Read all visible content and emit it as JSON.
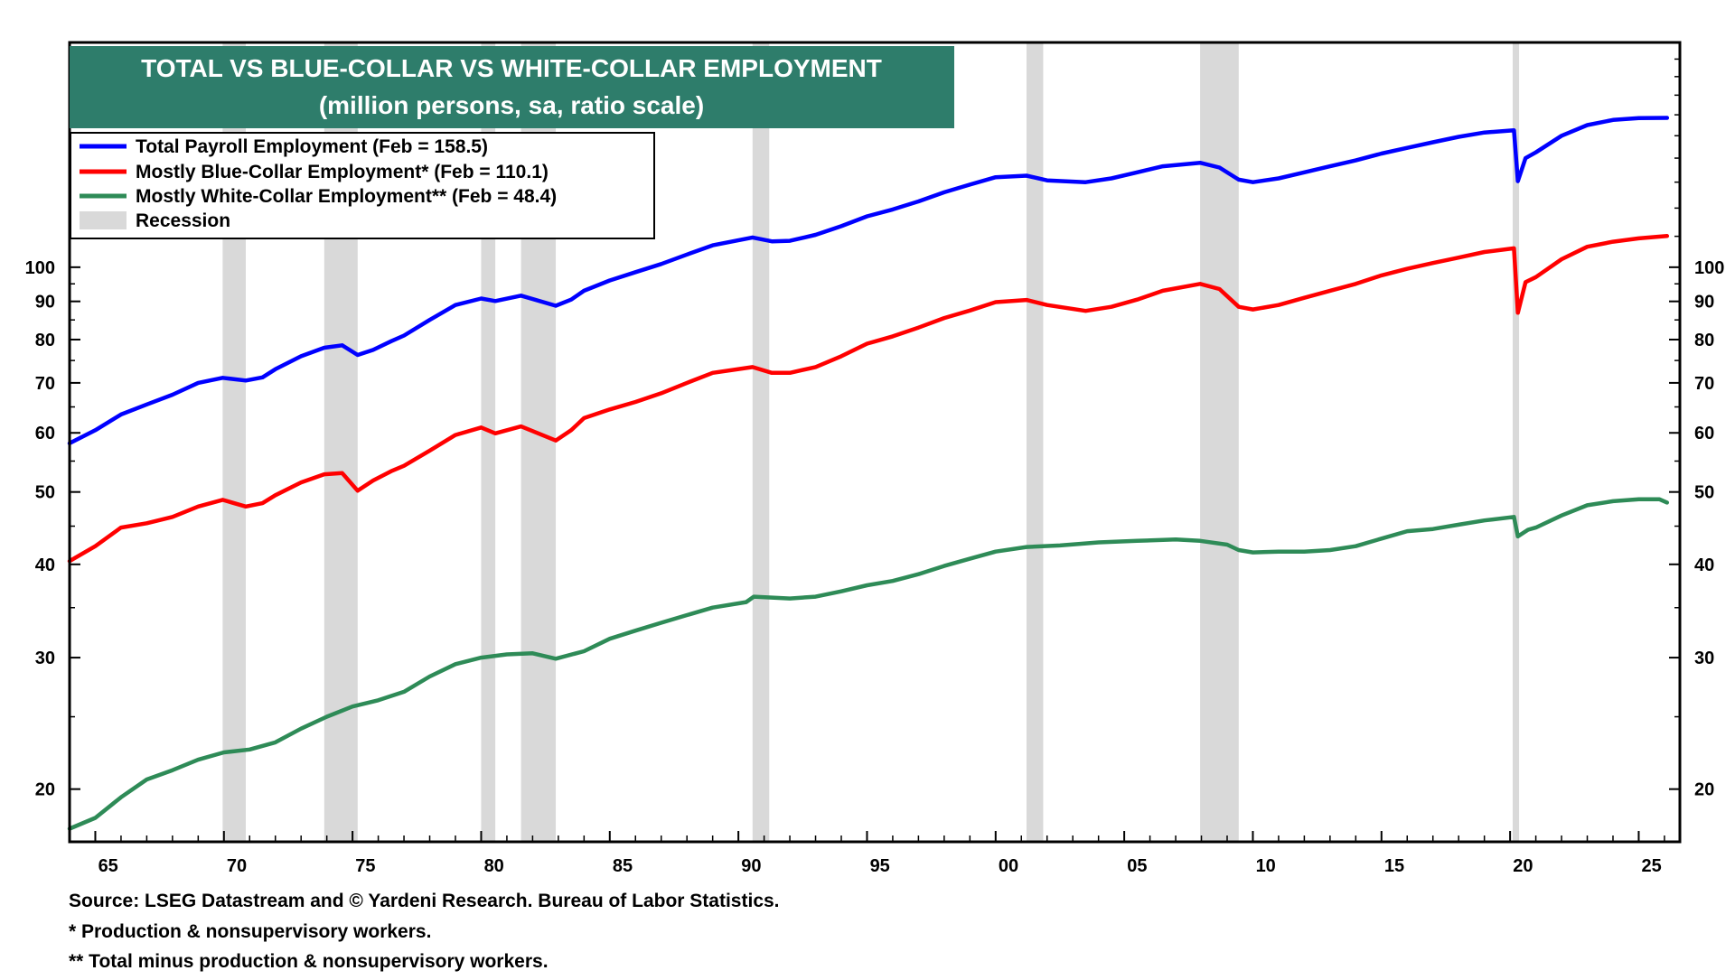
{
  "chart_data": {
    "type": "line",
    "title": "TOTAL VS BLUE-COLLAR VS WHITE-COLLAR EMPLOYMENT",
    "subtitle": "(million persons, sa, ratio scale)",
    "scale": "log",
    "ylim": [
      17,
      200
    ],
    "xlim": [
      1964.0,
      2026.6
    ],
    "y_ticks": [
      20,
      30,
      40,
      50,
      60,
      70,
      80,
      90,
      100
    ],
    "x_ticks": [
      {
        "value": 1965,
        "label": "65"
      },
      {
        "value": 1970,
        "label": "70"
      },
      {
        "value": 1975,
        "label": "75"
      },
      {
        "value": 1980,
        "label": "80"
      },
      {
        "value": 1985,
        "label": "85"
      },
      {
        "value": 1990,
        "label": "90"
      },
      {
        "value": 1995,
        "label": "95"
      },
      {
        "value": 2000,
        "label": "00"
      },
      {
        "value": 2005,
        "label": "05"
      },
      {
        "value": 2010,
        "label": "10"
      },
      {
        "value": 2015,
        "label": "15"
      },
      {
        "value": 2020,
        "label": "20"
      },
      {
        "value": 2025,
        "label": "25"
      }
    ],
    "legend": {
      "position": "top-left"
    },
    "recessions": [
      [
        1969.95,
        1970.85
      ],
      [
        1973.9,
        1975.2
      ],
      [
        1980.0,
        1980.55
      ],
      [
        1981.55,
        1982.9
      ],
      [
        1990.55,
        1991.2
      ],
      [
        2001.2,
        2001.85
      ],
      [
        2007.95,
        2009.45
      ],
      [
        2020.1,
        2020.35
      ]
    ],
    "recession_label": "Recession",
    "recession_color": "#d9d9d9",
    "series": [
      {
        "name": "Total Payroll Employment (Feb = 158.5)",
        "color": "#0000ff",
        "points": [
          [
            1964.0,
            58.1
          ],
          [
            1965.0,
            60.5
          ],
          [
            1966.0,
            63.5
          ],
          [
            1967.0,
            65.5
          ],
          [
            1968.0,
            67.5
          ],
          [
            1969.0,
            70.0
          ],
          [
            1969.95,
            71.1
          ],
          [
            1970.85,
            70.5
          ],
          [
            1971.5,
            71.2
          ],
          [
            1972.0,
            73.0
          ],
          [
            1973.0,
            76.0
          ],
          [
            1973.9,
            78.0
          ],
          [
            1974.6,
            78.6
          ],
          [
            1975.2,
            76.3
          ],
          [
            1975.8,
            77.5
          ],
          [
            1976.5,
            79.6
          ],
          [
            1977.0,
            81.0
          ],
          [
            1978.0,
            85.0
          ],
          [
            1979.0,
            89.0
          ],
          [
            1980.0,
            90.8
          ],
          [
            1980.55,
            90.1
          ],
          [
            1981.55,
            91.6
          ],
          [
            1982.9,
            88.8
          ],
          [
            1983.5,
            90.5
          ],
          [
            1984.0,
            93.0
          ],
          [
            1985.0,
            96.0
          ],
          [
            1986.0,
            98.5
          ],
          [
            1987.0,
            101.0
          ],
          [
            1988.0,
            104.0
          ],
          [
            1989.0,
            107.0
          ],
          [
            1990.55,
            109.6
          ],
          [
            1991.3,
            108.3
          ],
          [
            1992.0,
            108.5
          ],
          [
            1993.0,
            110.5
          ],
          [
            1994.0,
            113.5
          ],
          [
            1995.0,
            117.0
          ],
          [
            1996.0,
            119.5
          ],
          [
            1997.0,
            122.5
          ],
          [
            1998.0,
            126.0
          ],
          [
            1999.0,
            129.0
          ],
          [
            2000.0,
            132.0
          ],
          [
            2001.2,
            132.6
          ],
          [
            2002.0,
            130.7
          ],
          [
            2003.5,
            130.0
          ],
          [
            2004.5,
            131.5
          ],
          [
            2005.5,
            134.0
          ],
          [
            2006.5,
            136.5
          ],
          [
            2007.95,
            138.0
          ],
          [
            2008.7,
            136.0
          ],
          [
            2009.45,
            131.0
          ],
          [
            2010.0,
            130.0
          ],
          [
            2011.0,
            131.5
          ],
          [
            2012.0,
            134.0
          ],
          [
            2013.0,
            136.5
          ],
          [
            2014.0,
            139.0
          ],
          [
            2015.0,
            142.0
          ],
          [
            2016.0,
            144.5
          ],
          [
            2017.0,
            147.0
          ],
          [
            2018.0,
            149.5
          ],
          [
            2019.0,
            151.5
          ],
          [
            2020.15,
            152.5
          ],
          [
            2020.3,
            130.4
          ],
          [
            2020.6,
            140.0
          ],
          [
            2021.0,
            142.5
          ],
          [
            2022.0,
            150.0
          ],
          [
            2023.0,
            155.0
          ],
          [
            2024.0,
            157.5
          ],
          [
            2025.0,
            158.4
          ],
          [
            2026.1,
            158.5
          ]
        ]
      },
      {
        "name": "Mostly Blue-Collar Employment* (Feb = 110.1)",
        "color": "#ff0000",
        "points": [
          [
            1964.0,
            40.4
          ],
          [
            1965.0,
            42.3
          ],
          [
            1966.0,
            44.8
          ],
          [
            1967.0,
            45.4
          ],
          [
            1968.0,
            46.3
          ],
          [
            1969.0,
            47.8
          ],
          [
            1969.95,
            48.8
          ],
          [
            1970.85,
            47.8
          ],
          [
            1971.5,
            48.3
          ],
          [
            1972.0,
            49.5
          ],
          [
            1973.0,
            51.5
          ],
          [
            1973.9,
            52.8
          ],
          [
            1974.6,
            53.0
          ],
          [
            1975.2,
            50.2
          ],
          [
            1975.8,
            51.8
          ],
          [
            1976.5,
            53.3
          ],
          [
            1977.0,
            54.2
          ],
          [
            1978.0,
            56.8
          ],
          [
            1979.0,
            59.6
          ],
          [
            1980.0,
            61.0
          ],
          [
            1980.55,
            59.9
          ],
          [
            1981.55,
            61.2
          ],
          [
            1982.9,
            58.6
          ],
          [
            1983.5,
            60.5
          ],
          [
            1984.0,
            62.8
          ],
          [
            1985.0,
            64.5
          ],
          [
            1986.0,
            66.0
          ],
          [
            1987.0,
            67.8
          ],
          [
            1988.0,
            70.0
          ],
          [
            1989.0,
            72.2
          ],
          [
            1990.55,
            73.5
          ],
          [
            1991.3,
            72.2
          ],
          [
            1992.0,
            72.2
          ],
          [
            1993.0,
            73.5
          ],
          [
            1994.0,
            76.0
          ],
          [
            1995.0,
            79.0
          ],
          [
            1996.0,
            80.8
          ],
          [
            1997.0,
            83.0
          ],
          [
            1998.0,
            85.5
          ],
          [
            1999.0,
            87.5
          ],
          [
            2000.0,
            89.8
          ],
          [
            2001.2,
            90.4
          ],
          [
            2002.0,
            89.0
          ],
          [
            2003.5,
            87.4
          ],
          [
            2004.5,
            88.5
          ],
          [
            2005.5,
            90.5
          ],
          [
            2006.5,
            93.0
          ],
          [
            2007.95,
            95.0
          ],
          [
            2008.7,
            93.5
          ],
          [
            2009.45,
            88.5
          ],
          [
            2010.0,
            87.8
          ],
          [
            2011.0,
            89.0
          ],
          [
            2012.0,
            91.0
          ],
          [
            2013.0,
            93.0
          ],
          [
            2014.0,
            95.0
          ],
          [
            2015.0,
            97.5
          ],
          [
            2016.0,
            99.5
          ],
          [
            2017.0,
            101.3
          ],
          [
            2018.0,
            103.0
          ],
          [
            2019.0,
            104.8
          ],
          [
            2020.15,
            106.0
          ],
          [
            2020.3,
            86.9
          ],
          [
            2020.6,
            95.5
          ],
          [
            2021.0,
            97.0
          ],
          [
            2022.0,
            102.5
          ],
          [
            2023.0,
            106.5
          ],
          [
            2024.0,
            108.2
          ],
          [
            2025.0,
            109.3
          ],
          [
            2026.1,
            110.1
          ]
        ]
      },
      {
        "name": "Mostly White-Collar Employment** (Feb = 48.4)",
        "color": "#2e8b57",
        "points": [
          [
            1964.0,
            17.7
          ],
          [
            1965.0,
            18.3
          ],
          [
            1966.0,
            19.5
          ],
          [
            1967.0,
            20.6
          ],
          [
            1968.0,
            21.2
          ],
          [
            1969.0,
            21.9
          ],
          [
            1970.0,
            22.4
          ],
          [
            1971.0,
            22.6
          ],
          [
            1972.0,
            23.1
          ],
          [
            1973.0,
            24.1
          ],
          [
            1974.0,
            25.0
          ],
          [
            1975.0,
            25.8
          ],
          [
            1976.0,
            26.3
          ],
          [
            1977.0,
            27.0
          ],
          [
            1978.0,
            28.3
          ],
          [
            1979.0,
            29.4
          ],
          [
            1980.0,
            30.0
          ],
          [
            1981.0,
            30.3
          ],
          [
            1982.0,
            30.4
          ],
          [
            1982.9,
            29.9
          ],
          [
            1984.0,
            30.6
          ],
          [
            1985.0,
            31.8
          ],
          [
            1986.0,
            32.6
          ],
          [
            1987.0,
            33.4
          ],
          [
            1988.0,
            34.2
          ],
          [
            1989.0,
            35.0
          ],
          [
            1990.3,
            35.6
          ],
          [
            1990.6,
            36.2
          ],
          [
            1992.0,
            36.0
          ],
          [
            1993.0,
            36.2
          ],
          [
            1994.0,
            36.8
          ],
          [
            1995.0,
            37.5
          ],
          [
            1996.0,
            38.0
          ],
          [
            1997.0,
            38.8
          ],
          [
            1998.0,
            39.8
          ],
          [
            1999.0,
            40.7
          ],
          [
            2000.0,
            41.6
          ],
          [
            2001.2,
            42.2
          ],
          [
            2002.5,
            42.4
          ],
          [
            2004.0,
            42.8
          ],
          [
            2005.5,
            43.0
          ],
          [
            2007.0,
            43.2
          ],
          [
            2007.95,
            43.0
          ],
          [
            2009.0,
            42.5
          ],
          [
            2009.45,
            41.8
          ],
          [
            2010.0,
            41.5
          ],
          [
            2011.0,
            41.6
          ],
          [
            2012.0,
            41.6
          ],
          [
            2013.0,
            41.8
          ],
          [
            2014.0,
            42.3
          ],
          [
            2015.0,
            43.3
          ],
          [
            2016.0,
            44.3
          ],
          [
            2017.0,
            44.6
          ],
          [
            2018.0,
            45.2
          ],
          [
            2019.0,
            45.8
          ],
          [
            2020.15,
            46.3
          ],
          [
            2020.3,
            43.6
          ],
          [
            2020.7,
            44.5
          ],
          [
            2021.0,
            44.8
          ],
          [
            2022.0,
            46.5
          ],
          [
            2023.0,
            48.0
          ],
          [
            2024.0,
            48.6
          ],
          [
            2025.0,
            48.9
          ],
          [
            2025.8,
            48.9
          ],
          [
            2026.1,
            48.4
          ]
        ]
      }
    ]
  },
  "footnotes": {
    "source": "Source: LSEG Datastream and © Yardeni Research. Bureau of Labor Statistics.",
    "note1": "* Production & nonsupervisory workers.",
    "note2": "** Total minus production & nonsupervisory workers."
  },
  "colors": {
    "title_background": "#2e7d6b",
    "title_text": "#ffffff"
  }
}
